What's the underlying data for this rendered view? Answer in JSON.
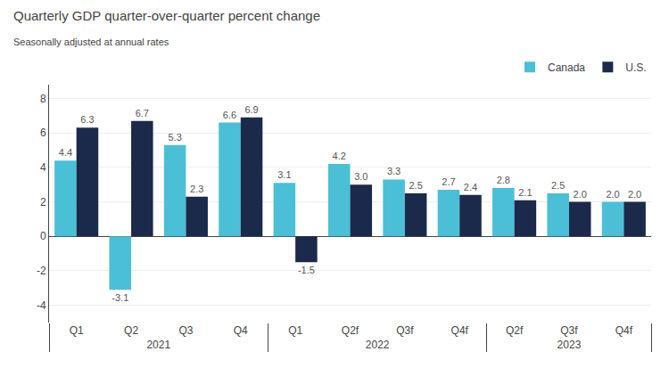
{
  "chart_data": {
    "type": "bar",
    "title": "Quarterly GDP quarter-over-quarter percent change",
    "subtitle": "Seasonally adjusted at annual rates",
    "categories": [
      "Q1",
      "Q2",
      "Q3",
      "Q4",
      "Q1",
      "Q2f",
      "Q3f",
      "Q4f",
      "Q2f",
      "Q3f",
      "Q4f"
    ],
    "category_groups": [
      "2021",
      "2021",
      "2021",
      "2021",
      "2022",
      "2022",
      "2022",
      "2022",
      "2023",
      "2023",
      "2023"
    ],
    "series": [
      {
        "name": "Canada",
        "color": "#4BBFD6",
        "values": [
          4.4,
          -3.1,
          5.3,
          6.6,
          3.1,
          4.2,
          3.3,
          2.7,
          2.8,
          2.5,
          2.0
        ],
        "value_labels": [
          "4.4",
          "-3.1",
          "5.3",
          "6.6",
          "3.1",
          "4.2",
          "3.3",
          "2.7",
          "2.8",
          "2.5",
          "2.0"
        ]
      },
      {
        "name": "U.S.",
        "color": "#1B2A4A",
        "values": [
          6.3,
          6.7,
          2.3,
          6.9,
          -1.5,
          3.0,
          2.5,
          2.4,
          2.1,
          2.0,
          2.0
        ],
        "value_labels": [
          "6.3",
          "6.7",
          "2.3",
          "6.9",
          "-1.5",
          "3.0",
          "2.5",
          "2.4",
          "2.1",
          "2.0",
          "2.0"
        ]
      }
    ],
    "ylim": [
      -5.0,
      8.8
    ],
    "yticks": [
      -4,
      -2,
      0,
      2,
      4,
      6,
      8
    ],
    "grid": true,
    "legend": "top",
    "data_labels": true
  }
}
